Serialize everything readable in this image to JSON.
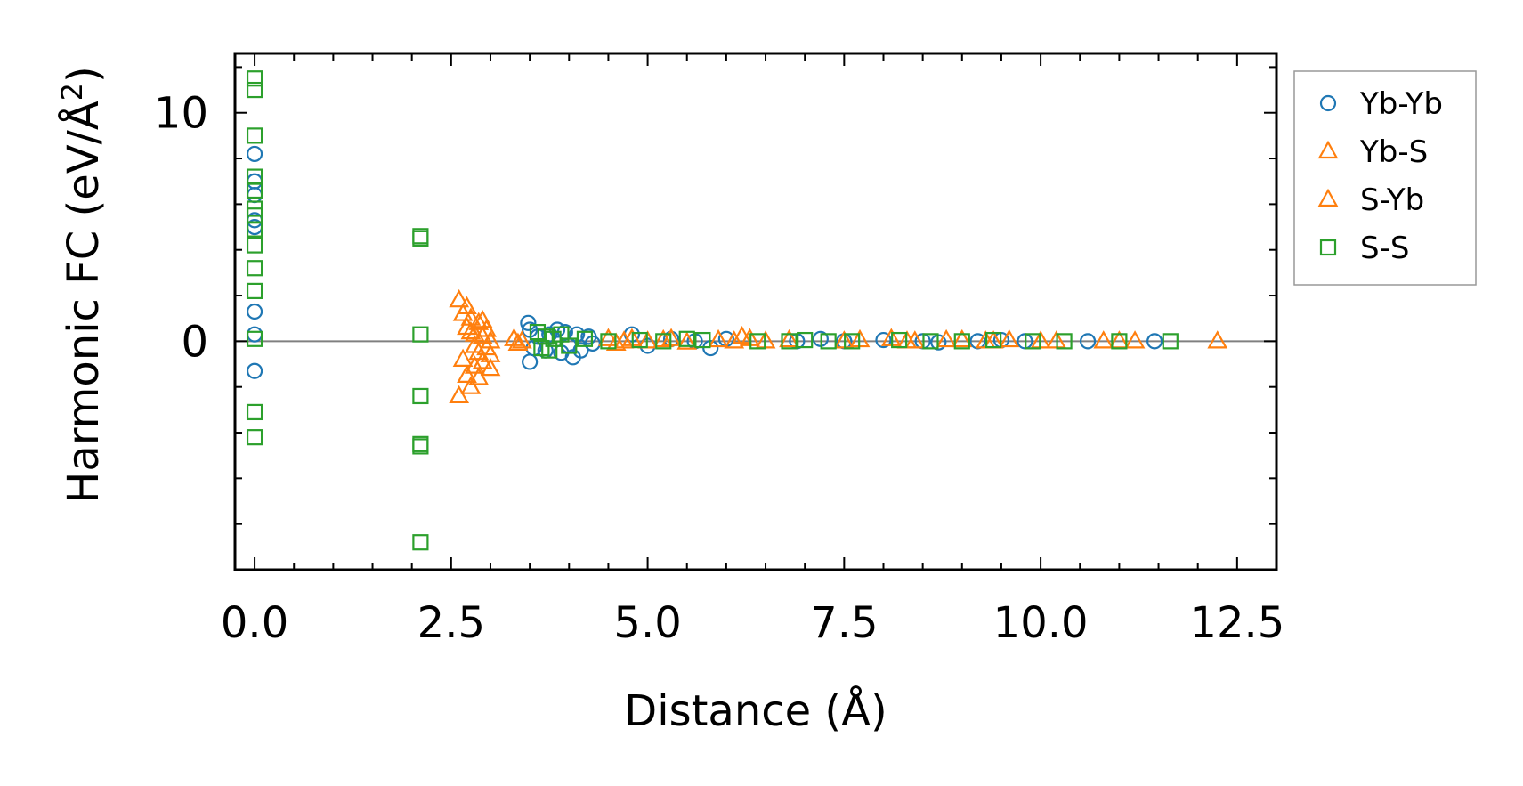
{
  "chart_data": {
    "type": "scatter",
    "title": "",
    "xlabel": "Distance (Å)",
    "ylabel": "Harmonic FC (eV/Å",
    "ylabel_superscript": "2",
    "ylabel_suffix": ")",
    "xlim": [
      -0.25,
      13.0
    ],
    "ylim": [
      -10.0,
      12.6
    ],
    "x_ticks": [
      0.0,
      2.5,
      5.0,
      7.5,
      10.0,
      12.5
    ],
    "x_tick_labels": [
      "0.0",
      "2.5",
      "5.0",
      "7.5",
      "10.0",
      "12.5"
    ],
    "y_ticks": [
      0,
      10
    ],
    "y_tick_labels": [
      "0",
      "10"
    ],
    "x_minor_step": 0.5,
    "y_minor_step": 2,
    "zero_line": true,
    "grid": false,
    "legend_position": "outside-right-top",
    "series": [
      {
        "name": "Yb-Yb",
        "marker": "circle",
        "color": "#1f77b4",
        "points": [
          [
            0.0,
            8.2
          ],
          [
            0.0,
            7.0
          ],
          [
            0.0,
            6.4
          ],
          [
            0.0,
            5.3
          ],
          [
            0.0,
            5.0
          ],
          [
            0.0,
            1.3
          ],
          [
            0.0,
            0.3
          ],
          [
            0.0,
            -1.3
          ],
          [
            3.48,
            0.8
          ],
          [
            3.5,
            0.5
          ],
          [
            3.55,
            -0.3
          ],
          [
            3.5,
            -0.9
          ],
          [
            3.6,
            0.2
          ],
          [
            3.7,
            -0.4
          ],
          [
            3.75,
            0.3
          ],
          [
            3.85,
            0.5
          ],
          [
            3.9,
            -0.5
          ],
          [
            3.95,
            0.4
          ],
          [
            4.0,
            -0.2
          ],
          [
            4.05,
            -0.7
          ],
          [
            4.1,
            0.3
          ],
          [
            4.15,
            -0.4
          ],
          [
            4.25,
            0.2
          ],
          [
            4.3,
            -0.1
          ],
          [
            4.8,
            0.3
          ],
          [
            5.0,
            -0.2
          ],
          [
            5.3,
            0.1
          ],
          [
            5.6,
            0.0
          ],
          [
            5.8,
            -0.3
          ],
          [
            6.0,
            0.1
          ],
          [
            6.9,
            0.0
          ],
          [
            7.2,
            0.1
          ],
          [
            7.5,
            0.0
          ],
          [
            8.0,
            0.05
          ],
          [
            8.5,
            0.0
          ],
          [
            8.7,
            -0.05
          ],
          [
            9.2,
            0.0
          ],
          [
            9.5,
            0.05
          ],
          [
            9.8,
            0.0
          ],
          [
            10.6,
            0.0
          ],
          [
            11.45,
            0.0
          ]
        ]
      },
      {
        "name": "Yb-S",
        "marker": "triangle",
        "color": "#ff7f0e",
        "points": [
          [
            2.6,
            1.8
          ],
          [
            2.65,
            1.2
          ],
          [
            2.7,
            0.6
          ],
          [
            2.75,
            1.0
          ],
          [
            2.8,
            0.3
          ],
          [
            2.85,
            0.8
          ],
          [
            2.9,
            0.2
          ],
          [
            2.95,
            0.5
          ],
          [
            3.0,
            0.0
          ],
          [
            2.65,
            -0.8
          ],
          [
            2.7,
            -1.5
          ],
          [
            2.75,
            -2.0
          ],
          [
            2.6,
            -2.4
          ],
          [
            2.8,
            -1.1
          ],
          [
            2.85,
            -0.5
          ],
          [
            2.9,
            -0.9
          ],
          [
            2.95,
            -0.3
          ],
          [
            3.0,
            -0.6
          ],
          [
            3.3,
            0.1
          ],
          [
            3.35,
            -0.1
          ],
          [
            4.5,
            0.1
          ],
          [
            4.6,
            -0.1
          ],
          [
            4.8,
            0.1
          ],
          [
            5.0,
            0.0
          ],
          [
            5.3,
            0.1
          ],
          [
            5.5,
            -0.05
          ],
          [
            5.9,
            0.05
          ],
          [
            6.2,
            0.2
          ],
          [
            6.3,
            0.1
          ],
          [
            6.5,
            0.0
          ],
          [
            7.7,
            0.05
          ],
          [
            8.1,
            0.1
          ],
          [
            8.4,
            0.0
          ],
          [
            9.0,
            0.05
          ],
          [
            9.3,
            0.0
          ],
          [
            9.6,
            0.05
          ],
          [
            10.0,
            0.0
          ],
          [
            10.8,
            0.0
          ],
          [
            11.2,
            0.0
          ],
          [
            12.25,
            0.0
          ]
        ]
      },
      {
        "name": "S-Yb",
        "marker": "triangle",
        "color": "#ff7f0e",
        "points": [
          [
            2.7,
            1.5
          ],
          [
            2.75,
            0.4
          ],
          [
            2.8,
            -0.2
          ],
          [
            2.85,
            -1.6
          ],
          [
            2.9,
            0.9
          ],
          [
            3.0,
            -1.2
          ],
          [
            3.4,
            0.0
          ],
          [
            4.7,
            0.0
          ],
          [
            5.2,
            0.05
          ],
          [
            6.1,
            0.0
          ],
          [
            6.8,
            0.05
          ],
          [
            7.5,
            0.0
          ],
          [
            8.3,
            0.0
          ],
          [
            8.8,
            0.05
          ],
          [
            9.4,
            0.0
          ],
          [
            10.2,
            0.0
          ],
          [
            11.0,
            0.0
          ]
        ]
      },
      {
        "name": "S-S",
        "marker": "square",
        "color": "#2ca02c",
        "points": [
          [
            0.0,
            11.5
          ],
          [
            0.0,
            11.0
          ],
          [
            0.0,
            9.0
          ],
          [
            0.0,
            7.2
          ],
          [
            0.0,
            6.6
          ],
          [
            0.0,
            5.8
          ],
          [
            0.0,
            5.5
          ],
          [
            0.0,
            4.9
          ],
          [
            0.0,
            4.2
          ],
          [
            0.0,
            3.2
          ],
          [
            0.0,
            2.2
          ],
          [
            0.0,
            0.1
          ],
          [
            0.0,
            -3.1
          ],
          [
            0.0,
            -4.2
          ],
          [
            2.11,
            4.6
          ],
          [
            2.11,
            4.5
          ],
          [
            2.11,
            0.3
          ],
          [
            2.11,
            -2.4
          ],
          [
            2.11,
            -4.5
          ],
          [
            2.11,
            -4.6
          ],
          [
            2.11,
            -8.8
          ],
          [
            3.6,
            0.4
          ],
          [
            3.65,
            -0.3
          ],
          [
            3.7,
            0.2
          ],
          [
            3.75,
            -0.4
          ],
          [
            3.8,
            0.1
          ],
          [
            3.9,
            0.3
          ],
          [
            4.0,
            -0.2
          ],
          [
            4.2,
            0.1
          ],
          [
            4.5,
            0.0
          ],
          [
            4.9,
            0.05
          ],
          [
            5.2,
            0.0
          ],
          [
            5.5,
            0.1
          ],
          [
            5.7,
            0.05
          ],
          [
            6.4,
            0.0
          ],
          [
            6.8,
            0.0
          ],
          [
            7.0,
            0.05
          ],
          [
            7.3,
            0.0
          ],
          [
            7.6,
            0.0
          ],
          [
            8.2,
            0.05
          ],
          [
            8.6,
            0.0
          ],
          [
            9.0,
            0.0
          ],
          [
            9.4,
            0.05
          ],
          [
            9.9,
            0.0
          ],
          [
            10.3,
            0.0
          ],
          [
            11.0,
            0.0
          ],
          [
            11.65,
            0.0
          ]
        ]
      }
    ],
    "legend_order": [
      "Yb-Yb",
      "Yb-S",
      "S-Yb",
      "S-S"
    ]
  }
}
